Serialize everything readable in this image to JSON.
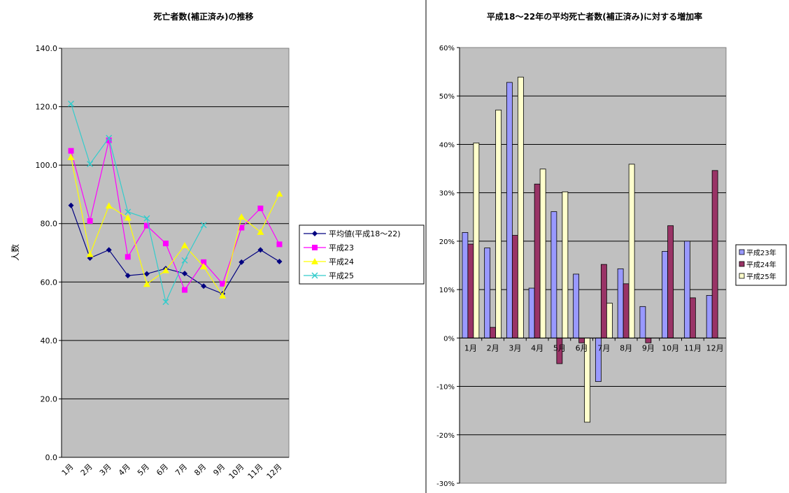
{
  "chart_data": [
    {
      "type": "line",
      "title": "死亡者数(補正済み)の推移",
      "ylabel": "人数",
      "ylim": [
        0,
        140
      ],
      "yticks": [
        "0.0",
        "20.0",
        "40.0",
        "60.0",
        "80.0",
        "100.0",
        "120.0",
        "140.0"
      ],
      "grid": true,
      "legend_position": "right",
      "plot_bg": "#c0c0c0",
      "categories": [
        "1月",
        "2月",
        "3月",
        "4月",
        "5月",
        "6月",
        "7月",
        "8月",
        "9月",
        "10月",
        "11月",
        "12月"
      ],
      "series": [
        {
          "name": "平均値(平成18〜22)",
          "color": "#000080",
          "marker": "diamond",
          "values": [
            86.2,
            68.2,
            71.0,
            62.2,
            62.8,
            64.6,
            62.9,
            58.6,
            56.0,
            66.8,
            71.0,
            67.0
          ]
        },
        {
          "name": "平成23",
          "color": "#ff00ff",
          "marker": "square",
          "values": [
            104.9,
            80.9,
            108.5,
            68.6,
            79.3,
            73.2,
            57.3,
            66.8,
            59.4,
            78.6,
            85.2,
            72.9
          ]
        },
        {
          "name": "平成24",
          "color": "#ffff00",
          "marker": "triangle",
          "values": [
            102.7,
            69.5,
            86.1,
            82.0,
            59.3,
            64.0,
            72.5,
            65.3,
            55.3,
            82.3,
            77.1,
            90.2
          ]
        },
        {
          "name": "平成25",
          "color": "#33cccc",
          "marker": "x",
          "values": [
            121.0,
            100.4,
            109.3,
            84.0,
            81.8,
            53.2,
            67.4,
            79.5,
            null,
            null,
            null,
            null
          ]
        }
      ]
    },
    {
      "type": "bar",
      "title": "平成18〜22年の平均死亡者数(補正済み)に対する増加率",
      "ylim": [
        -30,
        60
      ],
      "yticks": [
        "-30%",
        "-20%",
        "-10%",
        "0%",
        "10%",
        "20%",
        "30%",
        "40%",
        "50%",
        "60%"
      ],
      "grid": true,
      "legend_position": "right",
      "plot_bg": "#c0c0c0",
      "categories": [
        "1月",
        "2月",
        "3月",
        "4月",
        "5月",
        "6月",
        "7月",
        "8月",
        "9月",
        "10月",
        "11月",
        "12月"
      ],
      "series": [
        {
          "name": "平成23年",
          "color": "#9999ff",
          "values": [
            21.8,
            18.6,
            52.8,
            10.3,
            26.1,
            13.2,
            -9.0,
            14.3,
            6.5,
            17.9,
            20.0,
            8.8
          ]
        },
        {
          "name": "平成24年",
          "color": "#993366",
          "values": [
            19.4,
            2.2,
            21.2,
            31.8,
            -5.3,
            -1.0,
            15.2,
            11.2,
            -1.0,
            23.2,
            8.3,
            34.6
          ]
        },
        {
          "name": "平成25年",
          "color": "#ffffcc",
          "values": [
            40.3,
            47.1,
            53.9,
            34.9,
            30.2,
            -17.4,
            7.2,
            35.9,
            null,
            null,
            null,
            null
          ]
        }
      ]
    }
  ]
}
